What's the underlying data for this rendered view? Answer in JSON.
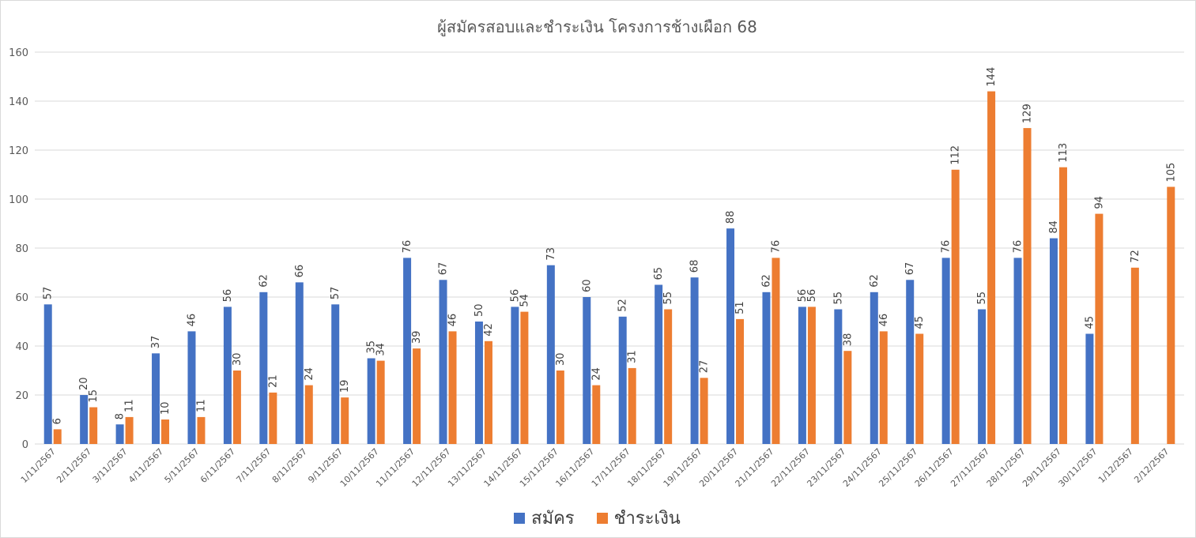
{
  "chart_data": {
    "type": "bar",
    "title": "ผู้สมัครสอบและชำระเงิน โครงการช้างเผือก 68",
    "xlabel": "",
    "ylabel": "",
    "ylim": [
      0,
      160
    ],
    "yticks": [
      0,
      20,
      40,
      60,
      80,
      100,
      120,
      140,
      160
    ],
    "grid": true,
    "legend_position": "bottom",
    "categories": [
      "1/11/2567",
      "2/11/2567",
      "3/11/2567",
      "4/11/2567",
      "5/11/2567",
      "6/11/2567",
      "7/11/2567",
      "8/11/2567",
      "9/11/2567",
      "10/11/2567",
      "11/11/2567",
      "12/11/2567",
      "13/11/2567",
      "14/11/2567",
      "15/11/2567",
      "16/11/2567",
      "17/11/2567",
      "18/11/2567",
      "19/11/2567",
      "20/11/2567",
      "21/11/2567",
      "22/11/2567",
      "23/11/2567",
      "24/11/2567",
      "25/11/2567",
      "26/11/2567",
      "27/11/2567",
      "28/11/2567",
      "29/11/2567",
      "30/11/2567",
      "1/12/2567",
      "2/12/2567"
    ],
    "series": [
      {
        "name": "สมัคร",
        "color": "#4472C4",
        "values": [
          57,
          20,
          8,
          37,
          46,
          56,
          62,
          66,
          57,
          35,
          76,
          67,
          50,
          56,
          73,
          60,
          52,
          65,
          68,
          88,
          62,
          56,
          55,
          62,
          67,
          76,
          55,
          76,
          84,
          45,
          null,
          null
        ]
      },
      {
        "name": "ชำระเงิน",
        "color": "#ED7D31",
        "values": [
          6,
          15,
          11,
          10,
          11,
          30,
          21,
          24,
          19,
          34,
          39,
          46,
          42,
          54,
          30,
          24,
          31,
          55,
          27,
          51,
          76,
          56,
          38,
          46,
          45,
          112,
          144,
          129,
          113,
          94,
          72,
          105
        ]
      }
    ]
  }
}
